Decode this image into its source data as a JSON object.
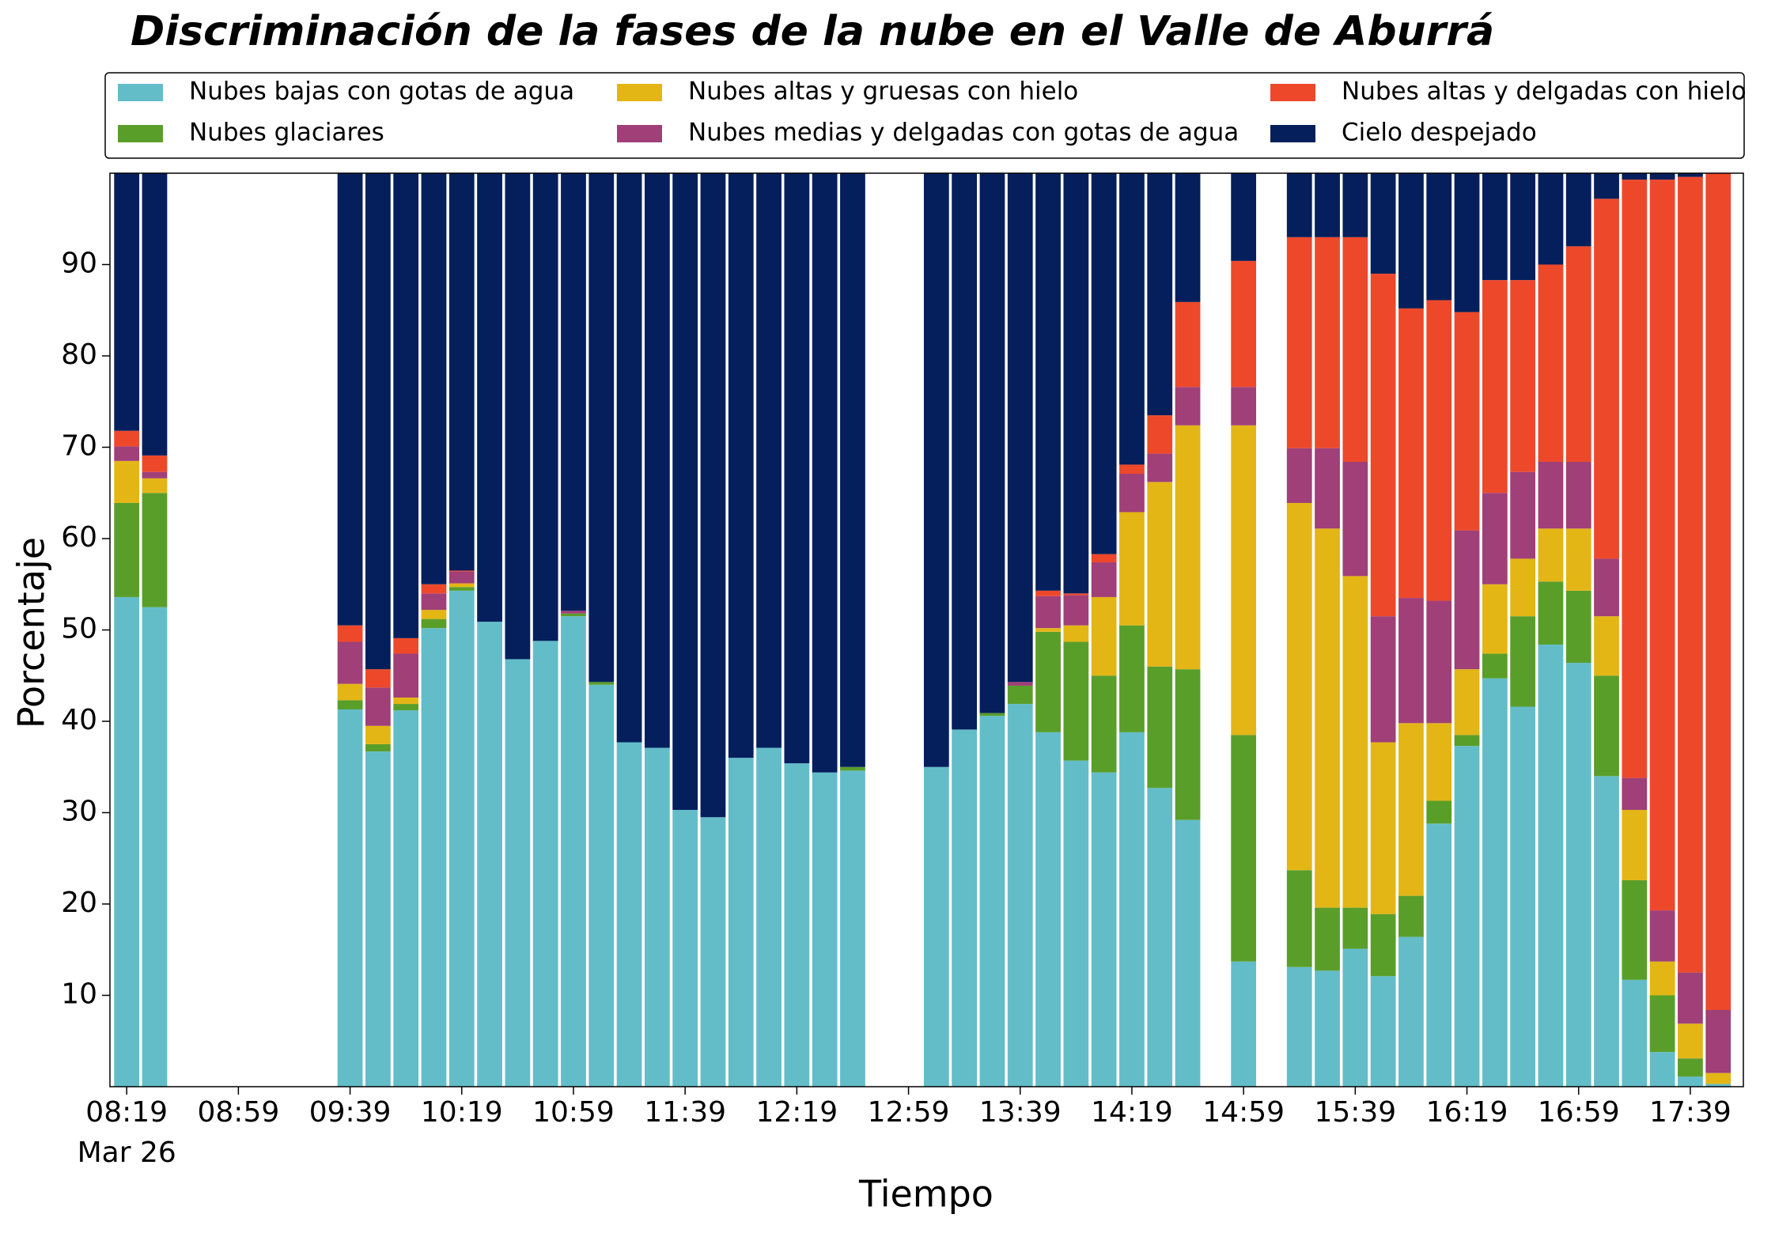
{
  "chart_data": {
    "type": "stacked_bar",
    "title": "Discriminación de la fases de la nube en el Valle de Aburrá",
    "xlabel": "Tiempo",
    "ylabel": "Porcentaje",
    "date_label": "Mar 26",
    "x": [
      "08:19",
      "08:29",
      "09:39",
      "09:49",
      "09:59",
      "10:09",
      "10:19",
      "10:29",
      "10:39",
      "10:49",
      "10:59",
      "11:09",
      "11:19",
      "11:29",
      "11:39",
      "11:49",
      "11:59",
      "12:09",
      "12:19",
      "12:29",
      "12:39",
      "13:09",
      "13:19",
      "13:29",
      "13:39",
      "13:49",
      "13:59",
      "14:09",
      "14:19",
      "14:29",
      "14:39",
      "14:59",
      "15:19",
      "15:29",
      "15:39",
      "15:49",
      "15:59",
      "16:09",
      "16:19",
      "16:29",
      "16:39",
      "16:49",
      "16:59",
      "17:09",
      "17:19",
      "17:29",
      "17:39",
      "17:49"
    ],
    "xlim": [
      "08:13",
      "17:58"
    ],
    "xticks": [
      "08:19",
      "08:59",
      "09:39",
      "10:19",
      "10:59",
      "11:39",
      "12:19",
      "12:59",
      "13:39",
      "14:19",
      "14:59",
      "15:39",
      "16:19",
      "16:59",
      "17:39"
    ],
    "ylim": [
      0,
      100
    ],
    "yticks": [
      10,
      20,
      30,
      40,
      50,
      60,
      70,
      80,
      90
    ],
    "grid": false,
    "legend": "top",
    "series": [
      {
        "name": "Nubes bajas con gotas de agua",
        "color": "#63bdc9",
        "values": [
          53.6,
          52.5,
          41.3,
          36.7,
          41.2,
          50.2,
          54.3,
          50.9,
          46.8,
          48.8,
          51.5,
          44.0,
          37.7,
          37.1,
          30.3,
          29.5,
          36.0,
          37.1,
          35.4,
          34.4,
          34.6,
          35.0,
          39.1,
          40.6,
          41.9,
          38.8,
          35.7,
          34.4,
          38.8,
          32.7,
          29.2,
          13.7,
          13.1,
          12.7,
          15.1,
          12.1,
          16.4,
          28.8,
          37.3,
          44.7,
          41.6,
          48.4,
          46.4,
          34.0,
          11.7,
          3.8,
          1.1,
          0.3
        ]
      },
      {
        "name": "Nubes glaciares",
        "color": "#5a9e2a",
        "values": [
          10.3,
          12.5,
          1.0,
          0.8,
          0.7,
          1.0,
          0.4,
          0,
          0,
          0,
          0.3,
          0.3,
          0,
          0,
          0,
          0,
          0,
          0,
          0,
          0,
          0.4,
          0,
          0,
          0.3,
          2.0,
          11.0,
          13.0,
          10.6,
          11.7,
          13.3,
          16.5,
          24.8,
          10.6,
          6.9,
          4.5,
          6.8,
          4.5,
          2.5,
          1.2,
          2.7,
          9.9,
          6.9,
          7.9,
          11.0,
          10.9,
          6.2,
          2.0,
          0
        ]
      },
      {
        "name": "Nubes altas y gruesas con hielo",
        "color": "#e3b615",
        "values": [
          4.6,
          1.6,
          1.8,
          2.0,
          0.7,
          1.0,
          0.4,
          0,
          0,
          0,
          0,
          0,
          0,
          0,
          0,
          0,
          0,
          0,
          0,
          0,
          0,
          0,
          0,
          0,
          0,
          0.4,
          1.8,
          8.6,
          12.4,
          20.2,
          26.7,
          33.9,
          40.2,
          41.5,
          36.3,
          18.8,
          18.9,
          8.5,
          7.2,
          7.6,
          6.3,
          5.8,
          6.8,
          6.5,
          7.7,
          3.7,
          3.8,
          1.2
        ]
      },
      {
        "name": "Nubes medias y delgadas con gotas de agua",
        "color": "#a03f78",
        "values": [
          1.6,
          0.7,
          4.6,
          4.2,
          4.8,
          1.8,
          1.3,
          0,
          0,
          0,
          0.3,
          0,
          0,
          0,
          0,
          0,
          0,
          0,
          0,
          0,
          0,
          0,
          0,
          0,
          0.4,
          3.5,
          3.3,
          3.8,
          4.2,
          3.1,
          4.2,
          4.2,
          6.0,
          8.8,
          12.5,
          13.8,
          13.7,
          13.4,
          15.2,
          10.0,
          9.5,
          7.3,
          7.3,
          6.3,
          3.5,
          5.6,
          5.6,
          6.9
        ]
      },
      {
        "name": "Nubes altas y delgadas con hielo",
        "color": "#ee482b",
        "values": [
          1.7,
          1.8,
          1.8,
          2.0,
          1.7,
          1.0,
          0.1,
          0,
          0,
          0,
          0,
          0,
          0,
          0,
          0,
          0,
          0,
          0,
          0,
          0,
          0,
          0,
          0,
          0,
          0,
          0.6,
          0.2,
          0.9,
          1.0,
          4.2,
          9.3,
          13.8,
          23.1,
          23.1,
          24.6,
          37.5,
          31.7,
          32.9,
          23.9,
          23.3,
          21.0,
          21.6,
          23.6,
          39.4,
          65.5,
          80.0,
          87.1,
          91.6
        ]
      },
      {
        "name": "Cielo despejado",
        "color": "#041f5c",
        "values": [
          28.2,
          30.9,
          49.5,
          54.3,
          50.9,
          45,
          43.5,
          49.1,
          53.2,
          51.2,
          47.9,
          55.7,
          62.3,
          62.9,
          69.7,
          70.5,
          64,
          62.9,
          64.6,
          65.6,
          65,
          65,
          60.9,
          59.1,
          55.7,
          45.7,
          46,
          41.7,
          31.9,
          26.5,
          14.1,
          9.6,
          7,
          7,
          7,
          11,
          14.8,
          13.9,
          15.2,
          11.7,
          11.7,
          10,
          8,
          2.8,
          0.7,
          0.7,
          0.4,
          0
        ]
      }
    ]
  }
}
